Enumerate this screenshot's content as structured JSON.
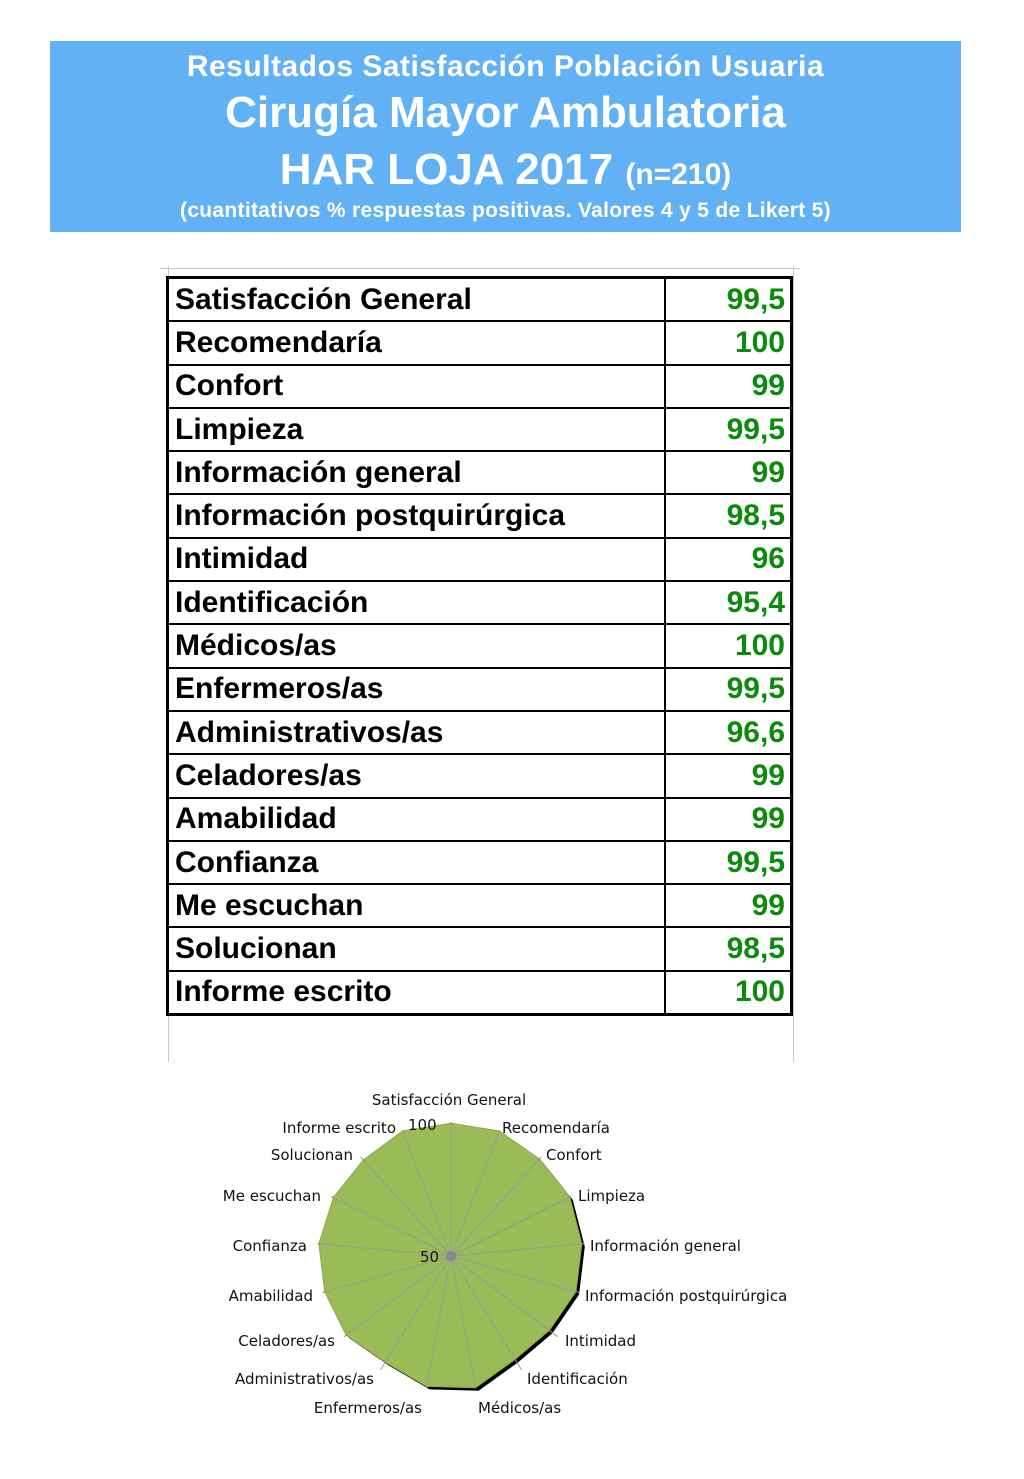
{
  "header": {
    "line1": "Resultados Satisfacción Población Usuaria",
    "line2": "Cirugía Mayor Ambulatoria",
    "line3_main": "HAR LOJA 2017",
    "line3_n": "(n=210)",
    "line4": "(cuantitativos % respuestas positivas. Valores 4 y 5 de Likert 5)"
  },
  "table": {
    "rows": [
      {
        "label": "Satisfacción General",
        "value": "99,5"
      },
      {
        "label": "Recomendaría",
        "value": "100"
      },
      {
        "label": "Confort",
        "value": "99"
      },
      {
        "label": "Limpieza",
        "value": "99,5"
      },
      {
        "label": "Información general",
        "value": "99"
      },
      {
        "label": "Información postquirúrgica",
        "value": "98,5"
      },
      {
        "label": "Intimidad",
        "value": "96"
      },
      {
        "label": "Identificación",
        "value": "95,4"
      },
      {
        "label": "Médicos/as",
        "value": "100"
      },
      {
        "label": "Enfermeros/as",
        "value": "99,5"
      },
      {
        "label": "Administrativos/as",
        "value": "96,6"
      },
      {
        "label": "Celadores/as",
        "value": "99"
      },
      {
        "label": "Amabilidad",
        "value": "99"
      },
      {
        "label": "Confianza",
        "value": "99,5"
      },
      {
        "label": "Me escuchan",
        "value": "99"
      },
      {
        "label": "Solucionan",
        "value": "98,5"
      },
      {
        "label": "Informe escrito",
        "value": "100"
      }
    ]
  },
  "chart_data": {
    "type": "radar",
    "categories": [
      "Satisfacción General",
      "Recomendaría",
      "Confort",
      "Limpieza",
      "Información general",
      "Información postquirúrgica",
      "Intimidad",
      "Identificación",
      "Médicos/as",
      "Enfermeros/as",
      "Administrativos/as",
      "Celadores/as",
      "Amabilidad",
      "Confianza",
      "Me escuchan",
      "Solucionan",
      "Informe escrito"
    ],
    "values": [
      99.5,
      100,
      99,
      99.5,
      99,
      98.5,
      96,
      95.4,
      100,
      99.5,
      96.6,
      99,
      99,
      99.5,
      99,
      98.5,
      100
    ],
    "rmin": 50,
    "rmax": 100,
    "tick_labels": [
      "50",
      "100"
    ],
    "colors": {
      "fill": "#9bbb59",
      "grid": "#999999",
      "shadow": "#000000"
    }
  }
}
